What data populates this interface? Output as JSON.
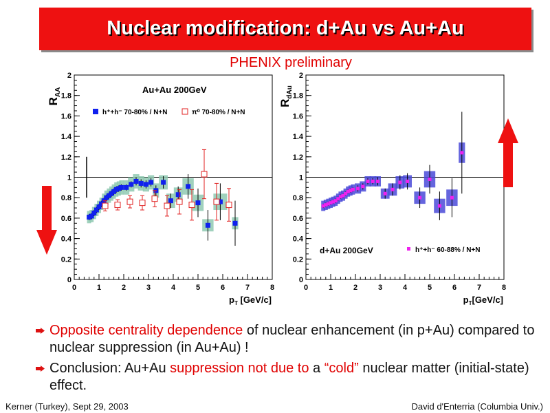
{
  "slide": {
    "title": "Nuclear modification: d+Au vs Au+Au",
    "subtitle": "PHENIX preliminary",
    "footer_left": "Kerner (Turkey), Sept 29, 2003",
    "footer_right": "David d'Enterria (Columbia Univ.)",
    "bullets": [
      {
        "segments": [
          {
            "text": "Opposite centrality dependence",
            "red": true
          },
          {
            "text": " of nuclear enhancement (in p+Au) compared to nuclear suppression (in Au+Au) !",
            "red": false
          }
        ]
      },
      {
        "segments": [
          {
            "text": "Conclusion: Au+Au ",
            "red": false
          },
          {
            "text": "suppression not due to",
            "red": true
          },
          {
            "text": " a ",
            "red": false
          },
          {
            "text": "“cold”",
            "red": true
          },
          {
            "text": " nuclear matter (initial-state) effect.",
            "red": false
          }
        ]
      }
    ],
    "colors": {
      "banner": "#ee1111",
      "accent_red": "#e00000",
      "arrow": "#ee1111"
    },
    "arrows": [
      {
        "name": "down-arrow",
        "direction": "down"
      },
      {
        "name": "up-arrow",
        "direction": "up"
      }
    ]
  },
  "chart_data": [
    {
      "type": "scatter",
      "title": "Au+Au 200GeV",
      "xlabel": "p_T [GeV/c]",
      "ylabel": "R_AA",
      "xlim": [
        0,
        8
      ],
      "ylim": [
        0,
        2
      ],
      "xticks": [
        0,
        1,
        2,
        3,
        4,
        5,
        6,
        7,
        8
      ],
      "yticks": [
        0,
        0.2,
        0.4,
        0.6,
        0.8,
        1,
        1.2,
        1.4,
        1.6,
        1.8,
        2
      ],
      "reference_line": 1,
      "grid": false,
      "legend_position": "top",
      "global_error_bar": {
        "x": 0.5,
        "low": 0.8,
        "high": 1.2
      },
      "series": [
        {
          "name": "h⁺+h⁻ 70-80% / N+N",
          "marker": "filled-square",
          "color": "#1020ee",
          "band_color": "#8fc9b2",
          "points": [
            {
              "x": 0.6,
              "y": 0.61,
              "sys": 0.06,
              "err": 0.03
            },
            {
              "x": 0.7,
              "y": 0.62,
              "sys": 0.06,
              "err": 0.03
            },
            {
              "x": 0.8,
              "y": 0.65,
              "sys": 0.06,
              "err": 0.03
            },
            {
              "x": 0.9,
              "y": 0.68,
              "sys": 0.06,
              "err": 0.03
            },
            {
              "x": 1.0,
              "y": 0.71,
              "sys": 0.06,
              "err": 0.03
            },
            {
              "x": 1.1,
              "y": 0.74,
              "sys": 0.06,
              "err": 0.03
            },
            {
              "x": 1.2,
              "y": 0.77,
              "sys": 0.07,
              "err": 0.03
            },
            {
              "x": 1.3,
              "y": 0.8,
              "sys": 0.07,
              "err": 0.03
            },
            {
              "x": 1.4,
              "y": 0.82,
              "sys": 0.07,
              "err": 0.03
            },
            {
              "x": 1.5,
              "y": 0.84,
              "sys": 0.07,
              "err": 0.03
            },
            {
              "x": 1.6,
              "y": 0.86,
              "sys": 0.07,
              "err": 0.03
            },
            {
              "x": 1.7,
              "y": 0.88,
              "sys": 0.07,
              "err": 0.03
            },
            {
              "x": 1.8,
              "y": 0.89,
              "sys": 0.07,
              "err": 0.03
            },
            {
              "x": 1.9,
              "y": 0.9,
              "sys": 0.07,
              "err": 0.03
            },
            {
              "x": 2.1,
              "y": 0.9,
              "sys": 0.07,
              "err": 0.03
            },
            {
              "x": 2.3,
              "y": 0.93,
              "sys": 0.07,
              "err": 0.03
            },
            {
              "x": 2.5,
              "y": 0.96,
              "sys": 0.07,
              "err": 0.04
            },
            {
              "x": 2.7,
              "y": 0.94,
              "sys": 0.07,
              "err": 0.04
            },
            {
              "x": 2.9,
              "y": 0.93,
              "sys": 0.07,
              "err": 0.04
            },
            {
              "x": 3.1,
              "y": 0.95,
              "sys": 0.07,
              "err": 0.04
            },
            {
              "x": 3.3,
              "y": 0.87,
              "sys": 0.07,
              "err": 0.05
            },
            {
              "x": 3.6,
              "y": 0.95,
              "sys": 0.07,
              "err": 0.06
            },
            {
              "x": 3.9,
              "y": 0.77,
              "sys": 0.07,
              "err": 0.07
            },
            {
              "x": 4.2,
              "y": 0.83,
              "sys": 0.07,
              "err": 0.08
            },
            {
              "x": 4.6,
              "y": 0.91,
              "sys": 0.08,
              "err": 0.12
            },
            {
              "x": 5.0,
              "y": 0.75,
              "sys": 0.08,
              "err": 0.14
            },
            {
              "x": 5.4,
              "y": 0.53,
              "sys": 0.06,
              "err": 0.15
            },
            {
              "x": 5.9,
              "y": 0.76,
              "sys": 0.08,
              "err": 0.18
            },
            {
              "x": 6.5,
              "y": 0.55,
              "sys": 0.06,
              "err": 0.22
            }
          ]
        },
        {
          "name": "π⁰ 70-80% / N+N",
          "marker": "open-square",
          "color": "#e02020",
          "points": [
            {
              "x": 1.25,
              "y": 0.72,
              "err": 0.05
            },
            {
              "x": 1.75,
              "y": 0.73,
              "err": 0.05
            },
            {
              "x": 2.25,
              "y": 0.76,
              "err": 0.06
            },
            {
              "x": 2.75,
              "y": 0.75,
              "err": 0.07
            },
            {
              "x": 3.25,
              "y": 0.79,
              "err": 0.08
            },
            {
              "x": 3.75,
              "y": 0.72,
              "err": 0.1
            },
            {
              "x": 4.25,
              "y": 0.76,
              "err": 0.12
            },
            {
              "x": 4.75,
              "y": 0.73,
              "err": 0.15
            },
            {
              "x": 5.25,
              "y": 1.03,
              "err": 0.24
            },
            {
              "x": 5.75,
              "y": 0.76,
              "err": 0.18
            },
            {
              "x": 6.25,
              "y": 0.73,
              "err": 0.16
            }
          ]
        }
      ]
    },
    {
      "type": "scatter",
      "title": "d+Au 200GeV",
      "xlabel": "p_T[GeV/c]",
      "ylabel": "R_dAu",
      "xlim": [
        0,
        8
      ],
      "ylim": [
        0,
        2
      ],
      "xticks": [
        0,
        1,
        2,
        3,
        4,
        5,
        6,
        7,
        8
      ],
      "yticks": [
        0,
        0.2,
        0.4,
        0.6,
        0.8,
        1,
        1.2,
        1.4,
        1.6,
        1.8,
        2
      ],
      "reference_line": 1,
      "grid": false,
      "legend_position": "bottom",
      "series": [
        {
          "name": "h⁺+h⁻ 60-88% / N+N",
          "marker": "filled-square",
          "color": "#ee22ee",
          "band_color": "#4a4ad8",
          "points": [
            {
              "x": 0.7,
              "y": 0.72,
              "sys": 0.05,
              "err": 0.02
            },
            {
              "x": 0.8,
              "y": 0.73,
              "sys": 0.05,
              "err": 0.02
            },
            {
              "x": 0.9,
              "y": 0.74,
              "sys": 0.05,
              "err": 0.02
            },
            {
              "x": 1.0,
              "y": 0.75,
              "sys": 0.05,
              "err": 0.02
            },
            {
              "x": 1.1,
              "y": 0.76,
              "sys": 0.05,
              "err": 0.02
            },
            {
              "x": 1.2,
              "y": 0.77,
              "sys": 0.05,
              "err": 0.02
            },
            {
              "x": 1.3,
              "y": 0.79,
              "sys": 0.05,
              "err": 0.02
            },
            {
              "x": 1.4,
              "y": 0.81,
              "sys": 0.05,
              "err": 0.02
            },
            {
              "x": 1.5,
              "y": 0.82,
              "sys": 0.05,
              "err": 0.02
            },
            {
              "x": 1.6,
              "y": 0.84,
              "sys": 0.05,
              "err": 0.02
            },
            {
              "x": 1.7,
              "y": 0.86,
              "sys": 0.05,
              "err": 0.02
            },
            {
              "x": 1.8,
              "y": 0.87,
              "sys": 0.05,
              "err": 0.02
            },
            {
              "x": 1.9,
              "y": 0.88,
              "sys": 0.05,
              "err": 0.02
            },
            {
              "x": 2.1,
              "y": 0.89,
              "sys": 0.05,
              "err": 0.03
            },
            {
              "x": 2.3,
              "y": 0.91,
              "sys": 0.05,
              "err": 0.03
            },
            {
              "x": 2.5,
              "y": 0.96,
              "sys": 0.05,
              "err": 0.03
            },
            {
              "x": 2.7,
              "y": 0.96,
              "sys": 0.05,
              "err": 0.03
            },
            {
              "x": 2.9,
              "y": 0.96,
              "sys": 0.05,
              "err": 0.04
            },
            {
              "x": 3.2,
              "y": 0.84,
              "sys": 0.05,
              "err": 0.05
            },
            {
              "x": 3.5,
              "y": 0.88,
              "sys": 0.06,
              "err": 0.06
            },
            {
              "x": 3.8,
              "y": 0.95,
              "sys": 0.06,
              "err": 0.07
            },
            {
              "x": 4.1,
              "y": 0.96,
              "sys": 0.06,
              "err": 0.08
            },
            {
              "x": 4.6,
              "y": 0.8,
              "sys": 0.06,
              "err": 0.1
            },
            {
              "x": 5.0,
              "y": 0.98,
              "sys": 0.08,
              "err": 0.14
            },
            {
              "x": 5.4,
              "y": 0.72,
              "sys": 0.07,
              "err": 0.14
            },
            {
              "x": 5.9,
              "y": 0.8,
              "sys": 0.08,
              "err": 0.19
            },
            {
              "x": 6.3,
              "y": 1.24,
              "sys": 0.1,
              "err": 0.4
            }
          ]
        }
      ]
    }
  ]
}
